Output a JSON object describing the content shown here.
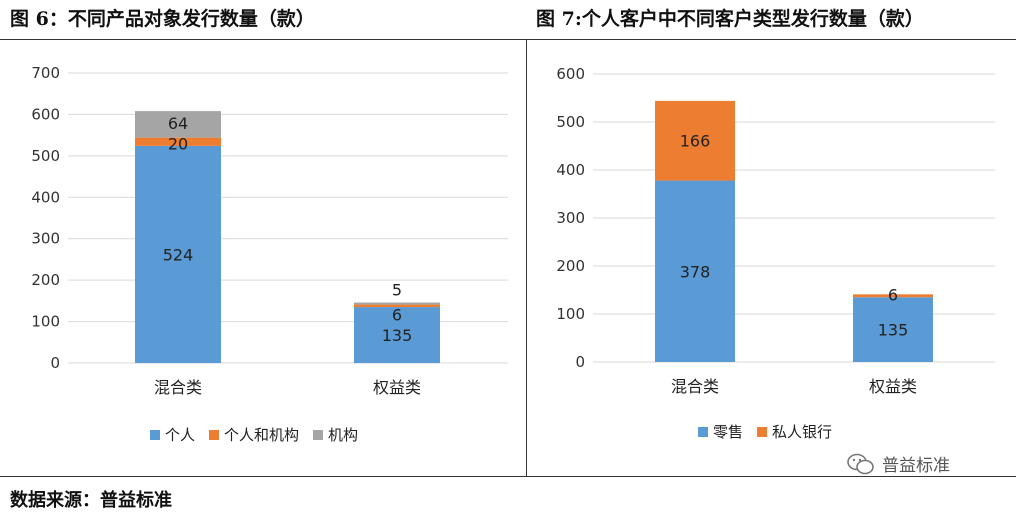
{
  "left_title": "图 6：不同产品对象发行数量（款）",
  "right_title": "图 7:个人客户中不同客户类型发行数量（款）",
  "source": "数据来源：普益标准",
  "watermark": "普益标准",
  "colors": {
    "blue": "#5b9bd5",
    "orange": "#ed7d31",
    "gray": "#a5a5a5",
    "grid": "#d9d9d9"
  },
  "chart_data": [
    {
      "type": "bar",
      "stacked": true,
      "title": "图 6：不同产品对象发行数量（款）",
      "categories": [
        "混合类",
        "权益类"
      ],
      "series": [
        {
          "name": "个人",
          "values": [
            524,
            135
          ],
          "color": "#5b9bd5"
        },
        {
          "name": "个人和机构",
          "values": [
            20,
            6
          ],
          "color": "#ed7d31"
        },
        {
          "name": "机构",
          "values": [
            64,
            5
          ],
          "color": "#a5a5a5"
        }
      ],
      "ylim": [
        0,
        700
      ],
      "yticks": [
        0,
        100,
        200,
        300,
        400,
        500,
        600,
        700
      ],
      "grid": true,
      "legend": "bottom"
    },
    {
      "type": "bar",
      "stacked": true,
      "title": "图 7:个人客户中不同客户类型发行数量（款）",
      "categories": [
        "混合类",
        "权益类"
      ],
      "series": [
        {
          "name": "零售",
          "values": [
            378,
            135
          ],
          "color": "#5b9bd5"
        },
        {
          "name": "私人银行",
          "values": [
            166,
            6
          ],
          "color": "#ed7d31"
        }
      ],
      "ylim": [
        0,
        600
      ],
      "yticks": [
        0,
        100,
        200,
        300,
        400,
        500,
        600
      ],
      "grid": true,
      "legend": "bottom"
    }
  ]
}
